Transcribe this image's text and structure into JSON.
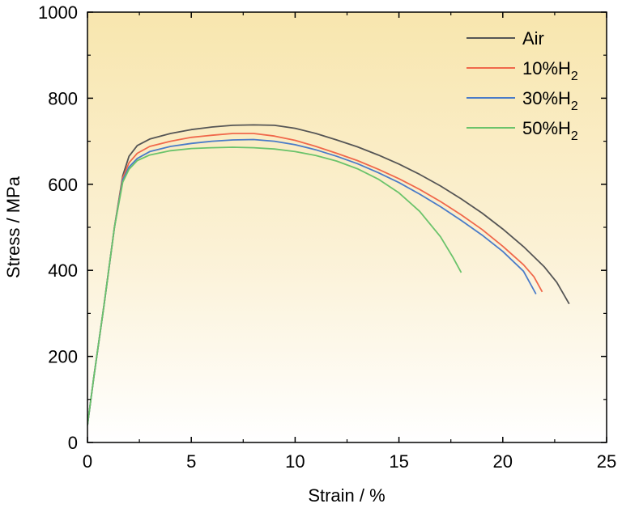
{
  "chart_data": {
    "type": "line",
    "xlabel": "Strain / %",
    "ylabel": "Stress / MPa",
    "xlim": [
      0,
      25
    ],
    "ylim": [
      0,
      1000
    ],
    "xticks": [
      "0",
      "5",
      "10",
      "15",
      "20",
      "25"
    ],
    "yticks": [
      "0",
      "200",
      "400",
      "600",
      "800",
      "1000"
    ],
    "grid": false,
    "legend_position": "top-right",
    "background": "gradient light yellow (top) to white (bottom)",
    "series": [
      {
        "name": "Air",
        "color": "#555555",
        "x": [
          0,
          0.3,
          0.8,
          1.3,
          1.7,
          2.0,
          2.4,
          3.0,
          4.0,
          5.0,
          6.0,
          7.0,
          8.0,
          9.0,
          10.0,
          11.0,
          12.0,
          13.0,
          14.0,
          15.0,
          16.0,
          17.0,
          18.0,
          19.0,
          20.0,
          21.0,
          22.0,
          22.6,
          23.2
        ],
        "y": [
          40,
          150,
          320,
          500,
          620,
          665,
          690,
          705,
          718,
          727,
          733,
          737,
          738,
          737,
          730,
          718,
          703,
          687,
          668,
          647,
          623,
          596,
          566,
          533,
          496,
          455,
          408,
          372,
          322
        ]
      },
      {
        "name": "10%H",
        "name_sub": "2",
        "color": "#F0684B",
        "x": [
          0,
          0.3,
          0.8,
          1.3,
          1.7,
          2.0,
          2.4,
          3.0,
          4.0,
          5.0,
          6.0,
          7.0,
          8.0,
          9.0,
          10.0,
          11.0,
          12.0,
          13.0,
          14.0,
          15.0,
          16.0,
          17.0,
          18.0,
          19.0,
          20.0,
          21.0,
          21.5,
          21.9
        ],
        "y": [
          40,
          150,
          320,
          500,
          615,
          650,
          672,
          688,
          700,
          709,
          714,
          718,
          718,
          712,
          702,
          688,
          672,
          655,
          635,
          613,
          588,
          560,
          529,
          495,
          456,
          413,
          385,
          350
        ]
      },
      {
        "name": "30%H",
        "name_sub": "2",
        "color": "#4A7BC8",
        "x": [
          0,
          0.3,
          0.8,
          1.3,
          1.7,
          2.0,
          2.4,
          3.0,
          4.0,
          5.0,
          6.0,
          7.0,
          8.0,
          9.0,
          10.0,
          11.0,
          12.0,
          13.0,
          14.0,
          15.0,
          16.0,
          17.0,
          18.0,
          19.0,
          20.0,
          21.0,
          21.6
        ],
        "y": [
          40,
          150,
          320,
          500,
          610,
          640,
          660,
          676,
          688,
          695,
          700,
          703,
          704,
          700,
          692,
          680,
          665,
          648,
          627,
          604,
          577,
          548,
          516,
          482,
          444,
          398,
          345
        ]
      },
      {
        "name": "50%H",
        "name_sub": "2",
        "color": "#6BC36B",
        "x": [
          0,
          0.3,
          0.8,
          1.3,
          1.7,
          2.0,
          2.4,
          3.0,
          4.0,
          5.0,
          6.0,
          7.0,
          8.0,
          9.0,
          10.0,
          11.0,
          12.0,
          13.0,
          14.0,
          15.0,
          16.0,
          17.0,
          17.6,
          18.0
        ],
        "y": [
          40,
          150,
          320,
          500,
          605,
          635,
          655,
          668,
          678,
          683,
          685,
          686,
          685,
          682,
          676,
          667,
          654,
          636,
          612,
          580,
          537,
          478,
          430,
          395
        ]
      }
    ]
  }
}
